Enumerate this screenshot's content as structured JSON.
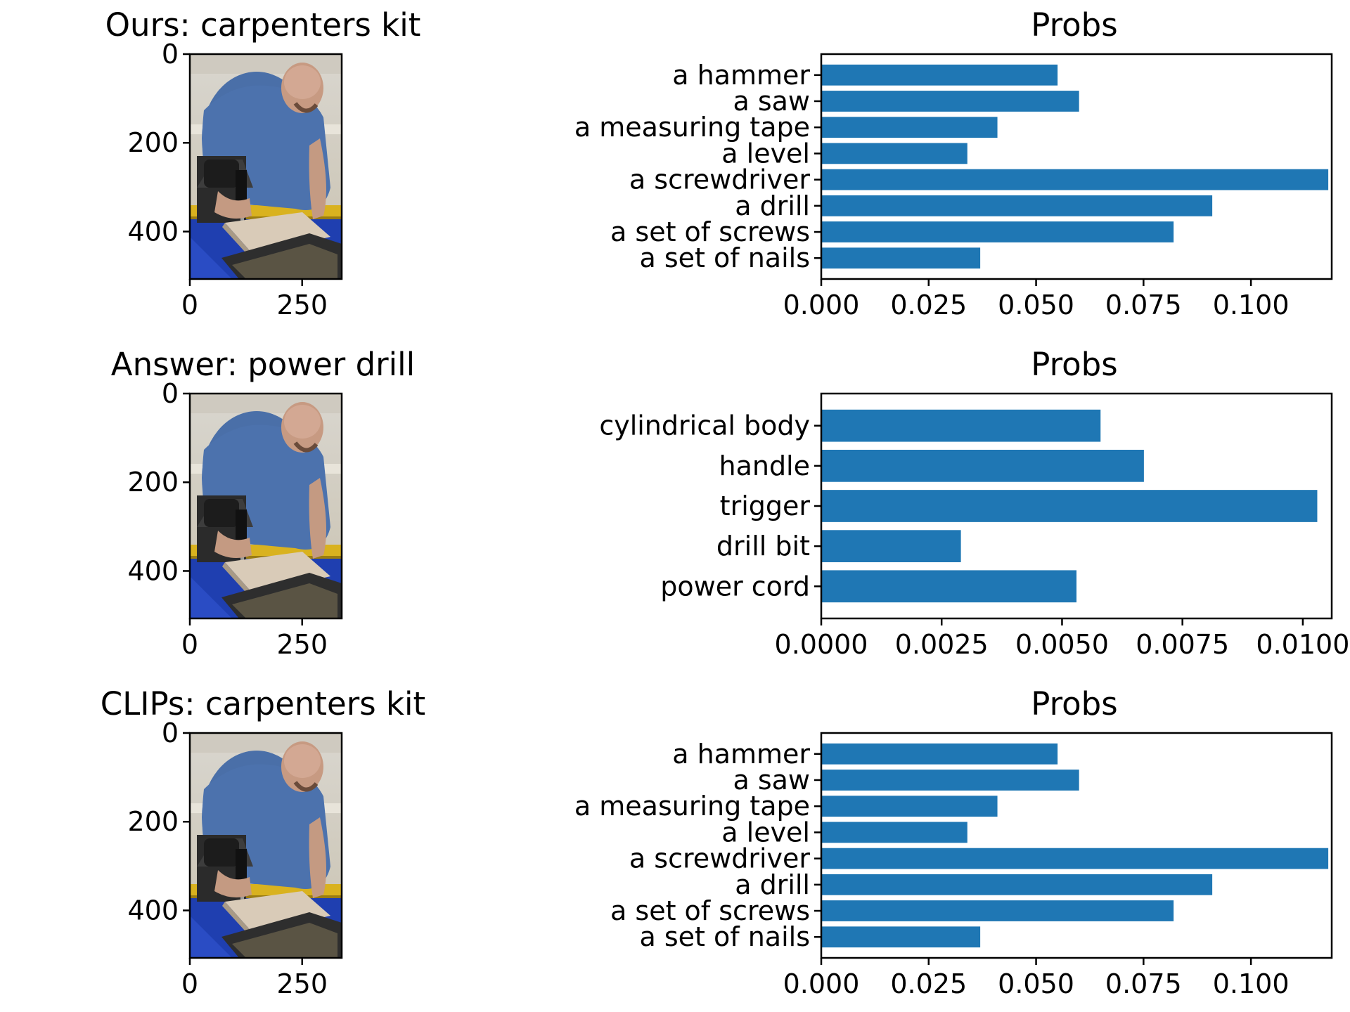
{
  "colors": {
    "bar": "#1f77b4",
    "axis": "#000000"
  },
  "rows": [
    {
      "image_title": "Ours: carpenters kit",
      "image_axes": {
        "xticks": [
          "0",
          "250"
        ],
        "yticks": [
          "0",
          "200",
          "400"
        ]
      },
      "chart_title": "Probs"
    },
    {
      "image_title": "Answer: power drill",
      "image_axes": {
        "xticks": [
          "0",
          "250"
        ],
        "yticks": [
          "0",
          "200",
          "400"
        ]
      },
      "chart_title": "Probs"
    },
    {
      "image_title": "CLIPs: carpenters kit",
      "image_axes": {
        "xticks": [
          "0",
          "250"
        ],
        "yticks": [
          "0",
          "200",
          "400"
        ]
      },
      "chart_title": "Probs"
    }
  ],
  "chart_data": [
    {
      "type": "bar",
      "orientation": "horizontal",
      "title": "Probs",
      "categories": [
        "a hammer",
        "a saw",
        "a measuring tape",
        "a level",
        "a screwdriver",
        "a drill",
        "a set of screws",
        "a set of nails"
      ],
      "values": [
        0.055,
        0.06,
        0.041,
        0.034,
        0.118,
        0.091,
        0.082,
        0.037
      ],
      "xlim": [
        0,
        0.1188
      ],
      "xticks": [
        0.0,
        0.025,
        0.05,
        0.075,
        0.1
      ],
      "xtick_labels": [
        "0.000",
        "0.025",
        "0.050",
        "0.075",
        "0.100"
      ],
      "grid": false
    },
    {
      "type": "bar",
      "orientation": "horizontal",
      "title": "Probs",
      "categories": [
        "cylindrical body",
        "handle",
        "trigger",
        "drill bit",
        "power cord"
      ],
      "values": [
        0.0058,
        0.0067,
        0.0103,
        0.0029,
        0.0053
      ],
      "xlim": [
        0,
        0.0106
      ],
      "xticks": [
        0.0,
        0.0025,
        0.005,
        0.0075,
        0.01
      ],
      "xtick_labels": [
        "0.0000",
        "0.0025",
        "0.0050",
        "0.0075",
        "0.0100"
      ],
      "grid": false
    },
    {
      "type": "bar",
      "orientation": "horizontal",
      "title": "Probs",
      "categories": [
        "a hammer",
        "a saw",
        "a measuring tape",
        "a level",
        "a screwdriver",
        "a drill",
        "a set of screws",
        "a set of nails"
      ],
      "values": [
        0.055,
        0.06,
        0.041,
        0.034,
        0.118,
        0.091,
        0.082,
        0.037
      ],
      "xlim": [
        0,
        0.1188
      ],
      "xticks": [
        0.0,
        0.025,
        0.05,
        0.075,
        0.1
      ],
      "xtick_labels": [
        "0.000",
        "0.025",
        "0.050",
        "0.075",
        "0.100"
      ],
      "grid": false
    }
  ]
}
